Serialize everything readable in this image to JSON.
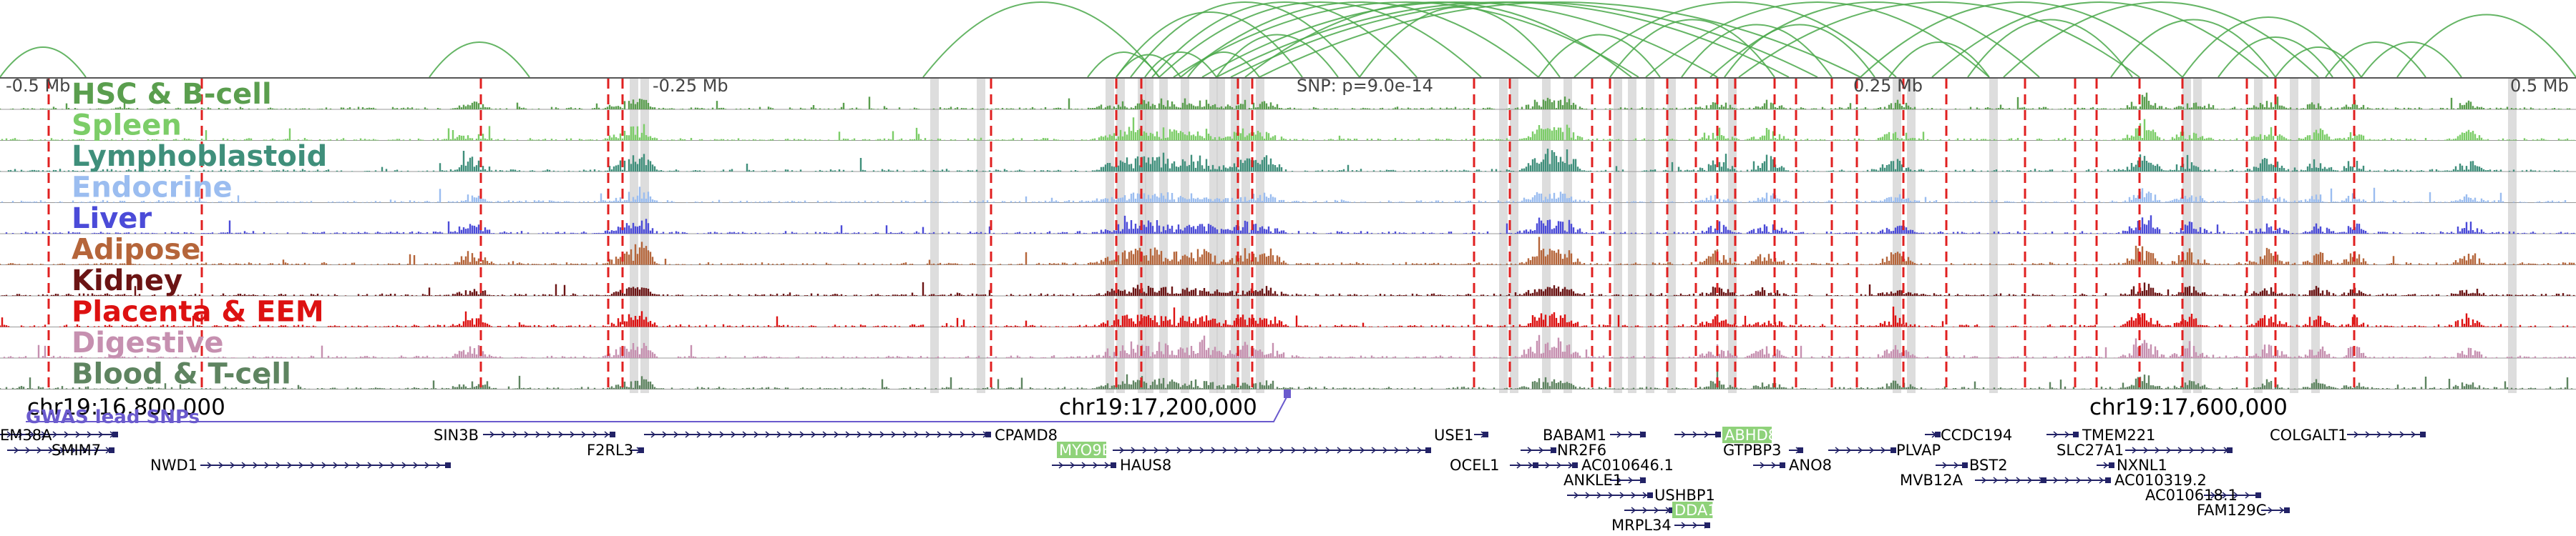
{
  "ruler_top": {
    "left": "-0.5 Mb",
    "left_mid": "-0.25 Mb",
    "snp": "SNP: p=9.0e-14",
    "right_mid": "0.25 Mb",
    "right": "0.5 Mb"
  },
  "tracks": [
    {
      "label": "HSC & B-cell",
      "color": "#5a9e4e"
    },
    {
      "label": "Spleen",
      "color": "#7ccd68"
    },
    {
      "label": "Lymphoblastoid",
      "color": "#3f8f7b"
    },
    {
      "label": "Endocrine",
      "color": "#9bbdf0"
    },
    {
      "label": "Liver",
      "color": "#4b4bd8"
    },
    {
      "label": "Adipose",
      "color": "#b5653a"
    },
    {
      "label": "Kidney",
      "color": "#6b1414"
    },
    {
      "label": "Placenta & EEM",
      "color": "#dd1111"
    },
    {
      "label": "Digestive",
      "color": "#c690b0"
    },
    {
      "label": "Blood & T-cell",
      "color": "#5e8460"
    }
  ],
  "coords": {
    "c1": "chr19:16,800,000",
    "c2": "chr19:17,200,000",
    "c3": "chr19:17,600,000"
  },
  "gwas_label": "GWAS lead SNPs",
  "colors": {
    "arc": "#4aa84a",
    "dashed": "#e02020",
    "gene": "#222266",
    "highlight": "#8fd27a",
    "gwas": "#6a5acd",
    "axis": "#555555"
  },
  "genes": [
    {
      "name": "EM38A"
    },
    {
      "name": "SMIM7"
    },
    {
      "name": "NWD1"
    },
    {
      "name": "SIN3B"
    },
    {
      "name": "F2RL3"
    },
    {
      "name": "CPAMD8"
    },
    {
      "name": "MYO9B",
      "highlight": true
    },
    {
      "name": "HAUS8"
    },
    {
      "name": "USE1"
    },
    {
      "name": "OCEL1"
    },
    {
      "name": "BABAM1"
    },
    {
      "name": "NR2F6"
    },
    {
      "name": "AC010646.1"
    },
    {
      "name": "ANKLE1"
    },
    {
      "name": "USHBP1"
    },
    {
      "name": "DDA1",
      "highlight": true
    },
    {
      "name": "MRPL34"
    },
    {
      "name": "ABHD8",
      "highlight": true
    },
    {
      "name": "GTPBP3"
    },
    {
      "name": "ANO8"
    },
    {
      "name": "PLVAP"
    },
    {
      "name": "CCDC194"
    },
    {
      "name": "BST2"
    },
    {
      "name": "MVB12A"
    },
    {
      "name": "TMEM221"
    },
    {
      "name": "SLC27A1"
    },
    {
      "name": "NXNL1"
    },
    {
      "name": "AC010319.2"
    },
    {
      "name": "AC010618.1"
    },
    {
      "name": "FAM129C"
    },
    {
      "name": "COLGALT1"
    }
  ]
}
